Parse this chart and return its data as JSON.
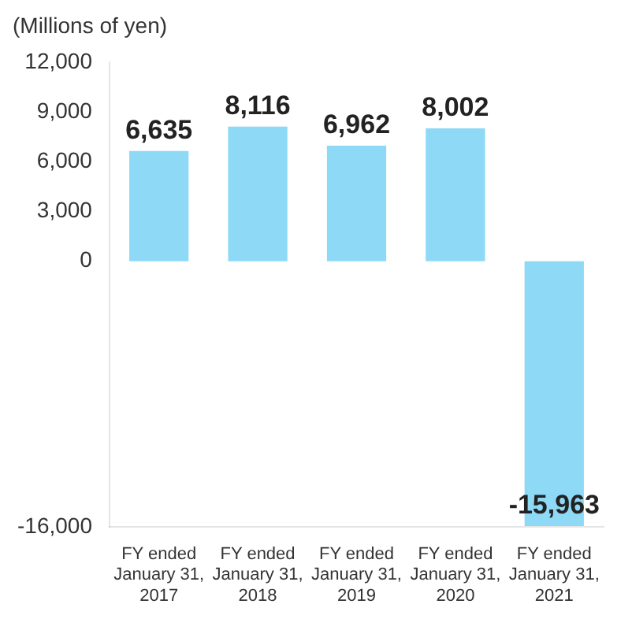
{
  "chart_data": {
    "type": "bar",
    "ylabel": "(Millions of yen)",
    "categories": [
      "FY ended\nJanuary 31,\n2017",
      "FY ended\nJanuary 31,\n2018",
      "FY ended\nJanuary 31,\n2019",
      "FY ended\nJanuary 31,\n2020",
      "FY ended\nJanuary 31,\n2021"
    ],
    "values": [
      6635,
      8116,
      6962,
      8002,
      -15963
    ],
    "value_labels": [
      "6,635",
      "8,116",
      "6,962",
      "8,002",
      "-15,963"
    ],
    "color": "#8dd9f6",
    "ylim": [
      -16000,
      12000
    ],
    "yticks": [
      {
        "value": -16000,
        "label": "-16,000"
      },
      0,
      {
        "value": 3000,
        "label": "3,000"
      },
      {
        "value": 6000,
        "label": "6,000"
      },
      {
        "value": 9000,
        "label": "9,000"
      },
      {
        "value": 12000,
        "label": "12,000"
      }
    ]
  }
}
